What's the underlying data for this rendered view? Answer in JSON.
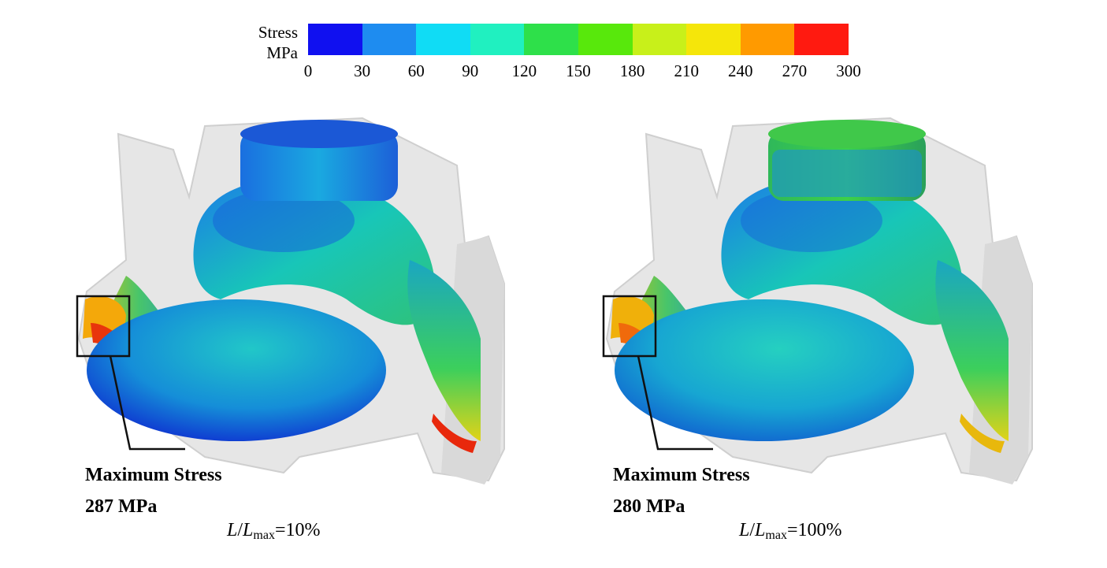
{
  "legend": {
    "title_line1": "Stress",
    "title_line2": "MPa",
    "ticks": [
      "0",
      "30",
      "60",
      "90",
      "120",
      "150",
      "180",
      "210",
      "240",
      "270",
      "300"
    ],
    "colors": [
      "#1010f0",
      "#1e8cf0",
      "#10dcf5",
      "#20f0c0",
      "#2ee04a",
      "#58e80c",
      "#c8f01a",
      "#f5e60a",
      "#ff9a00",
      "#ff1a10"
    ]
  },
  "panels": [
    {
      "caption_line1": "Maximum Stress",
      "caption_line2": "287 MPa",
      "ratio_L": "L",
      "ratio_Lmax": "L",
      "ratio_sub": "max",
      "ratio_value": "=10%"
    },
    {
      "caption_line1": "Maximum Stress",
      "caption_line2": "280 MPa",
      "ratio_L": "L",
      "ratio_Lmax": "L",
      "ratio_sub": "max",
      "ratio_value": "=100%"
    }
  ]
}
